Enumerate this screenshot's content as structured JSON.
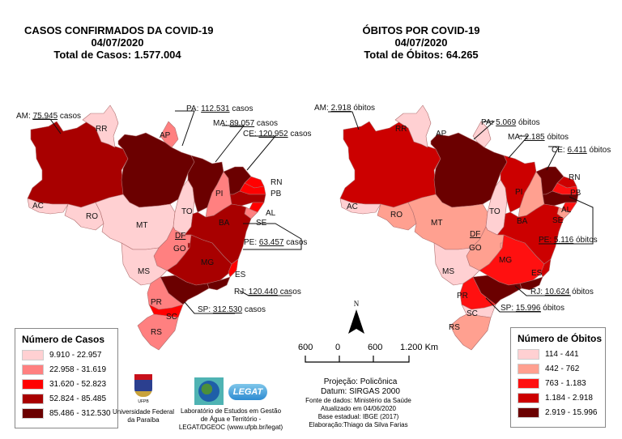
{
  "cases_map": {
    "title": "CASOS CONFIRMADOS DA COVID-19",
    "date": "04/07/2020",
    "total": "Total de Casos: 1.577.004",
    "callouts": {
      "AM": {
        "prefix": "AM: ",
        "value": "75.945",
        "suffix": " casos"
      },
      "PA": {
        "prefix": "PA: ",
        "value": "112.531",
        "suffix": " casos"
      },
      "MA": {
        "prefix": "MA: ",
        "value": "89.057",
        "suffix": " casos"
      },
      "CE": {
        "prefix": "CE: ",
        "value": "120.952",
        "suffix": " casos"
      },
      "PE": {
        "prefix": "PE: ",
        "value": "63.457",
        "suffix": "  casos"
      },
      "RJ": {
        "prefix": "RJ: ",
        "value": "120.440",
        "suffix": " casos"
      },
      "SP": {
        "prefix": "SP: ",
        "value": "312.530",
        "suffix": " casos"
      }
    },
    "legend": {
      "title": "Número de Casos",
      "classes": [
        {
          "range": "9.910 - 22.957",
          "color": "#FFD0D2"
        },
        {
          "range": "22.958 - 31.619",
          "color": "#FF8080"
        },
        {
          "range": "31.620 - 52.823",
          "color": "#FF0000"
        },
        {
          "range": "52.824 - 85.485",
          "color": "#A80000"
        },
        {
          "range": "85.486 - 312.530",
          "color": "#6B0000"
        }
      ]
    },
    "state_class": {
      "AM": 3,
      "RR": 0,
      "AP": 1,
      "PA": 4,
      "AC": 0,
      "RO": 0,
      "MT": 0,
      "TO": 0,
      "MA": 4,
      "PI": 1,
      "CE": 4,
      "RN": 2,
      "PB": 2,
      "PE": 3,
      "AL": 2,
      "SE": 1,
      "BA": 3,
      "GO": 1,
      "DF": 3,
      "MG": 3,
      "ES": 2,
      "RJ": 4,
      "SP": 4,
      "MS": 0,
      "PR": 1,
      "SC": 2,
      "RS": 1
    }
  },
  "deaths_map": {
    "title": "ÓBITOS POR COVID-19",
    "date": "04/07/2020",
    "total": "Total de Óbitos: 64.265",
    "callouts": {
      "AM": {
        "prefix": "AM: ",
        "value": "2.918",
        "suffix": " óbitos"
      },
      "PA": {
        "prefix": "PA: ",
        "value": "5.069",
        "suffix": " óbitos"
      },
      "MA": {
        "prefix": "MA: ",
        "value": "2.185",
        "suffix": " óbitos"
      },
      "CE": {
        "prefix": "CE: ",
        "value": "6.411",
        "suffix": " óbitos"
      },
      "PE": {
        "prefix": "PE: ",
        "value": "5.116",
        "suffix": " óbitos"
      },
      "RJ": {
        "prefix": "RJ: ",
        "value": "10.624",
        "suffix": " óbitos"
      },
      "SP": {
        "prefix": "SP: ",
        "value": "15.996",
        "suffix": " óbitos"
      }
    },
    "legend": {
      "title": "Número de Óbitos",
      "classes": [
        {
          "range": "114 - 441",
          "color": "#FFD0D2"
        },
        {
          "range": "442 - 762",
          "color": "#FFA090"
        },
        {
          "range": "763 - 1.183",
          "color": "#FF1010"
        },
        {
          "range": "1.184 - 2.918",
          "color": "#CC0000"
        },
        {
          "range": "2.919 - 15.996",
          "color": "#6B0000"
        }
      ]
    },
    "state_class": {
      "AM": 3,
      "RR": 0,
      "AP": 0,
      "PA": 4,
      "AC": 0,
      "RO": 1,
      "MT": 1,
      "TO": 0,
      "MA": 3,
      "PI": 1,
      "CE": 4,
      "RN": 3,
      "PB": 2,
      "PE": 4,
      "AL": 2,
      "SE": 1,
      "BA": 3,
      "GO": 1,
      "DF": 1,
      "MG": 2,
      "ES": 3,
      "RJ": 4,
      "SP": 4,
      "MS": 0,
      "PR": 2,
      "SC": 0,
      "RS": 1
    }
  },
  "state_labels": [
    "RR",
    "AP",
    "AC",
    "RO",
    "MT",
    "TO",
    "PI",
    "RN",
    "PB",
    "AL",
    "SE",
    "BA",
    "DF",
    "GO",
    "MG",
    "ES",
    "MS",
    "PR",
    "SC",
    "RS"
  ],
  "north_arrow": {
    "label": "N"
  },
  "scale_bar": {
    "ticks": [
      "600",
      "0",
      "600",
      "1.200 Km"
    ]
  },
  "projection": {
    "line1": "Projeção: Policônica",
    "line2": "Datum: SIRGAS 2000"
  },
  "source": {
    "line1": "Fonte de dados: Ministério da Saúde",
    "line2": "Atualizado em 04/06/2020",
    "line3": "Base estadual: IBGE (2017)",
    "line4": "Elaboração:Thiago da Silva Farias"
  },
  "logos": {
    "ufpb": {
      "caption1": "Universidade Federal",
      "caption2": "da Paraíba",
      "mark": "UFPB"
    },
    "legat": {
      "word": "LEGAT",
      "caption1": "Laboratório de Estudos em Gestão",
      "caption2": "de Água e Território -",
      "caption3": "LEGAT/DGEOC (www.ufpb.br/legat)"
    }
  }
}
